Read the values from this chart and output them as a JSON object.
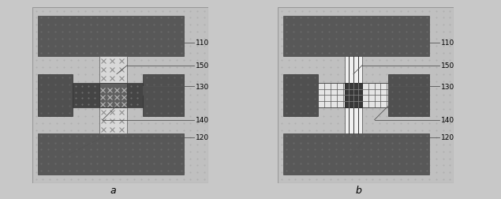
{
  "bg_color": "#c8c8c8",
  "panel_bg": "#c0c0c0",
  "dark_electrode": "#505050",
  "dark_bar": "#585858",
  "light_resistor": "#e8e8e8",
  "white": "#ffffff",
  "label_110": "110",
  "label_150": "150",
  "label_130": "130",
  "label_140": "140",
  "label_120": "120",
  "sub_a": "a",
  "sub_b": "b",
  "fig_width": 6.35,
  "fig_height": 2.53
}
